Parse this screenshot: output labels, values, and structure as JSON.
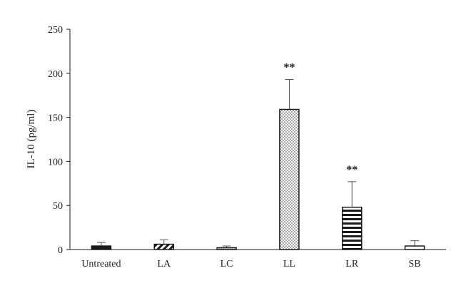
{
  "chart_data": {
    "type": "bar",
    "title": "",
    "xlabel": "",
    "ylabel": "IL-10 (pg/ml)",
    "ylim": [
      0,
      250
    ],
    "yticks": [
      0,
      50,
      100,
      150,
      200,
      250
    ],
    "categories": [
      "Untreated",
      "LA",
      "LC",
      "LL",
      "LR",
      "SB"
    ],
    "values": [
      4,
      6,
      2,
      159,
      48,
      4
    ],
    "errors": [
      4,
      5,
      2,
      34,
      29,
      6
    ],
    "annotations": [
      "",
      "",
      "",
      "**",
      "**",
      ""
    ],
    "patterns": [
      "solid",
      "diagonal-stripes",
      "dots-sparse",
      "dots",
      "horizontal-stripes",
      "none"
    ],
    "grid": false,
    "legend": "none"
  },
  "colors": {
    "ink": "#1a1a1a",
    "background": "#ffffff"
  }
}
